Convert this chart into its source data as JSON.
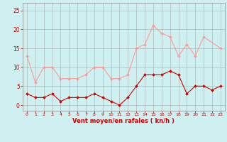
{
  "x": [
    0,
    1,
    2,
    3,
    4,
    5,
    6,
    7,
    8,
    9,
    10,
    11,
    12,
    13,
    14,
    15,
    16,
    17,
    18,
    19,
    20,
    21,
    22,
    23
  ],
  "rafales": [
    13,
    6,
    10,
    10,
    7,
    7,
    7,
    8,
    10,
    10,
    7,
    7,
    8,
    15,
    16,
    21,
    19,
    18,
    13,
    16,
    13,
    18,
    null,
    15
  ],
  "moyen": [
    3,
    2,
    2,
    3,
    1,
    2,
    2,
    2,
    3,
    2,
    1,
    0,
    2,
    5,
    8,
    8,
    8,
    9,
    8,
    3,
    5,
    5,
    4,
    5
  ],
  "bg_color": "#cff0f0",
  "grid_color": "#aaaaaa",
  "line_rafales_color": "#ff9999",
  "line_moyen_color": "#cc0000",
  "xlabel": "Vent moyen/en rafales ( kn/h )",
  "xlabel_color": "#cc0000",
  "tick_color": "#cc0000",
  "yticks": [
    0,
    5,
    10,
    15,
    20,
    25
  ],
  "xticks": [
    0,
    1,
    2,
    3,
    4,
    5,
    6,
    7,
    8,
    9,
    10,
    11,
    12,
    13,
    14,
    15,
    16,
    17,
    18,
    19,
    20,
    21,
    22,
    23
  ],
  "ylim": [
    -1.5,
    27
  ],
  "xlim": [
    -0.5,
    23.5
  ]
}
